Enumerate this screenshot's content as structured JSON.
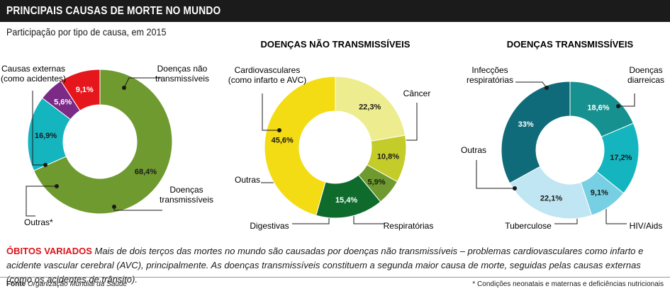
{
  "header": {
    "title": "PRINCIPAIS CAUSAS DE MORTE NO MUNDO",
    "subtitle": "Participação por tipo de causa, em 2015"
  },
  "chart_data": [
    {
      "type": "pie",
      "title": "",
      "slices": [
        {
          "label": [
            "Doenças não",
            "transmissíveis"
          ],
          "value": 68.4,
          "value_label": "68,4%",
          "color": "#6f9a2f",
          "text_color": "#1a1a1a"
        },
        {
          "label": [
            "Doenças",
            "transmissíveis"
          ],
          "value": 16.9,
          "value_label": "16,9%",
          "color": "#15b5c0",
          "text_color": "#1a1a1a"
        },
        {
          "label": [
            "Outras*"
          ],
          "value": 5.6,
          "value_label": "5,6%",
          "color": "#7b2a86",
          "text_color": "#ffffff"
        },
        {
          "label": [
            "Causas externas",
            "(como acidentes)"
          ],
          "value": 9.1,
          "value_label": "9,1%",
          "color": "#e5161c",
          "text_color": "#ffffff"
        }
      ]
    },
    {
      "type": "pie",
      "title": "DOENÇAS NÃO TRANSMISSÍVEIS",
      "slices": [
        {
          "label": [
            "Câncer"
          ],
          "value": 22.3,
          "value_label": "22,3%",
          "color": "#eded8f",
          "text_color": "#1a1a1a"
        },
        {
          "label": [
            "Respiratórias"
          ],
          "value": 10.8,
          "value_label": "10,8%",
          "color": "#c4cc2a",
          "text_color": "#1a1a1a"
        },
        {
          "label": [
            "Digestivas"
          ],
          "value": 5.9,
          "value_label": "5,9%",
          "color": "#6f9a2f",
          "text_color": "#1a1a1a"
        },
        {
          "label": [
            "Outras"
          ],
          "value": 15.4,
          "value_label": "15,4%",
          "color": "#0e6b2c",
          "text_color": "#ffffff"
        },
        {
          "label": [
            "Cardiovasculares",
            "(como infarto e AVC)"
          ],
          "value": 45.6,
          "value_label": "45,6%",
          "color": "#f4dc15",
          "text_color": "#1a1a1a"
        }
      ]
    },
    {
      "type": "pie",
      "title": "DOENÇAS TRANSMISSÍVEIS",
      "slices": [
        {
          "label": [
            "Doenças",
            "diarreicas"
          ],
          "value": 18.6,
          "value_label": "18,6%",
          "color": "#16918f",
          "text_color": "#ffffff"
        },
        {
          "label": [
            "HIV/Aids"
          ],
          "value": 17.2,
          "value_label": "17,2%",
          "color": "#15b5c0",
          "text_color": "#1a1a1a"
        },
        {
          "label": [
            "Tuberculose"
          ],
          "value": 9.1,
          "value_label": "9,1%",
          "color": "#76cfe3",
          "text_color": "#1a1a1a"
        },
        {
          "label": [
            "Outras"
          ],
          "value": 22.1,
          "value_label": "22,1%",
          "color": "#bfe6f2",
          "text_color": "#1a1a1a"
        },
        {
          "label": [
            "Infecções",
            "respiratórias"
          ],
          "value": 33,
          "value_label": "33%",
          "color": "#0f6b7a",
          "text_color": "#ffffff"
        }
      ]
    }
  ],
  "caption": {
    "highlight": "ÓBITOS VARIADOS",
    "text": " Mais de dois terços das mortes no mundo são causadas por doenças não transmissíveis – problemas cardiovasculares como infarto e acidente vascular cerebral (AVC), principalmente. As doenças transmissíveis constituem a segunda maior causa de morte, seguidas pelas causas externas (como os acidentes de trânsito)."
  },
  "footer": {
    "source_label": "Fonte",
    "source": "Organização Mundial da Saúde",
    "footnote": "* Condições neonatais e maternas e deficiências nutricionais"
  }
}
